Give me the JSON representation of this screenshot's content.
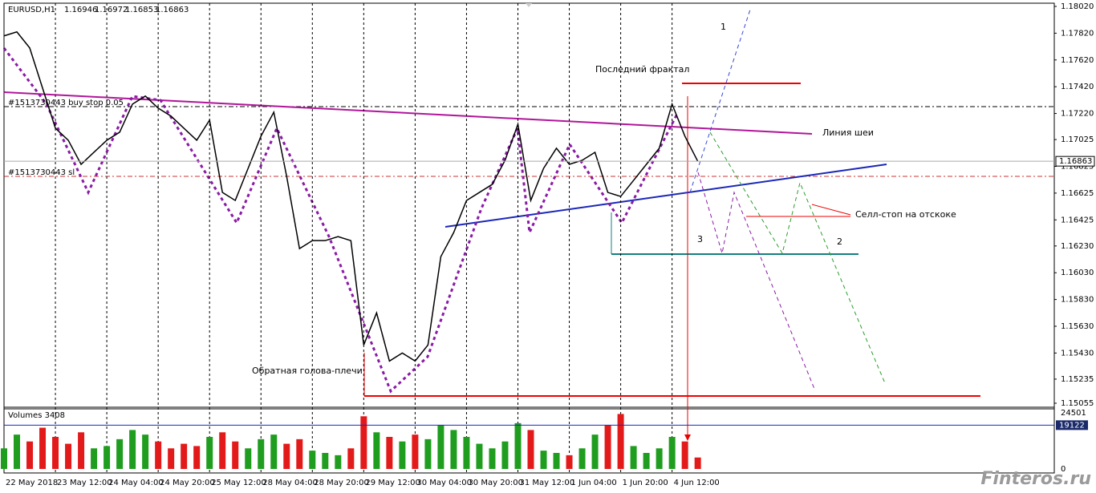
{
  "header": {
    "symbol": "EURUSD,H1",
    "ohlc": [
      1.16946,
      1.16972,
      1.16853,
      1.16863
    ]
  },
  "orders": [
    "#1513730443 buy stop 0.05",
    "#1513730443 sl"
  ],
  "annotations": [
    "Последний фрактал",
    "Линия шеи",
    "Селл-стоп на отскоке",
    "Обратная голова-плечи",
    "1",
    "2",
    "3"
  ],
  "watermark": "Finteros.ru",
  "chart_data": [
    {
      "type": "line",
      "name": "EURUSD close",
      "x": [
        0,
        1,
        2,
        3,
        4,
        5,
        6,
        7,
        8,
        9,
        10,
        11,
        12,
        13,
        14,
        15,
        16,
        17,
        18,
        19,
        20,
        21,
        22,
        23,
        24,
        25,
        26,
        27,
        28,
        29,
        30,
        31,
        32,
        33,
        34,
        35,
        36,
        37,
        38,
        39,
        40,
        41,
        42,
        43,
        44,
        45,
        46,
        47,
        48,
        49,
        50,
        51,
        52,
        53,
        54
      ],
      "values": [
        1.178,
        1.1783,
        1.1771,
        1.1741,
        1.1711,
        1.1702,
        1.1684,
        1.1693,
        1.1702,
        1.1708,
        1.1729,
        1.1735,
        1.1726,
        1.172,
        1.1711,
        1.1702,
        1.1717,
        1.1663,
        1.1657,
        1.1681,
        1.1705,
        1.1723,
        1.1675,
        1.1621,
        1.1627,
        1.1627,
        1.163,
        1.1627,
        1.1549,
        1.1573,
        1.1537,
        1.1543,
        1.1537,
        1.1549,
        1.1615,
        1.1633,
        1.1657,
        1.1663,
        1.1669,
        1.1687,
        1.1714,
        1.1657,
        1.1681,
        1.1696,
        1.1684,
        1.1687,
        1.1693,
        1.1663,
        1.166,
        1.1672,
        1.1684,
        1.1696,
        1.1729,
        1.1705,
        1.16863
      ],
      "color": "#000000",
      "current_price": 1.16863,
      "xlim": [
        0,
        81.75
      ],
      "xticks": [
        {
          "value": 0,
          "label": "22 May 2018"
        },
        {
          "value": 4,
          "label": "23 May 12:00"
        },
        {
          "value": 8,
          "label": "24 May 04:00"
        },
        {
          "value": 12,
          "label": "24 May 20:00"
        },
        {
          "value": 16,
          "label": "25 May 12:00"
        },
        {
          "value": 20,
          "label": "28 May 04:00"
        },
        {
          "value": 24,
          "label": "28 May 20:00"
        },
        {
          "value": 28,
          "label": "29 May 12:00"
        },
        {
          "value": 32,
          "label": "30 May 04:00"
        },
        {
          "value": 36,
          "label": "30 May 20:00"
        },
        {
          "value": 40,
          "label": "31 May 12:00"
        },
        {
          "value": 44,
          "label": "1 Jun 04:00"
        },
        {
          "value": 48,
          "label": "1 Jun 20:00"
        },
        {
          "value": 52,
          "label": "4 Jun 12:00"
        }
      ],
      "ylim": [
        1.15025,
        1.18044
      ],
      "yticks": [
        {
          "value": 1.1802,
          "label": "1.18020"
        },
        {
          "value": 1.1782,
          "label": "1.17820"
        },
        {
          "value": 1.1762,
          "label": "1.17620"
        },
        {
          "value": 1.1742,
          "label": "1.17420"
        },
        {
          "value": 1.1722,
          "label": "1.17220"
        },
        1.17025,
        1.16825,
        1.16625,
        1.16425,
        {
          "value": 1.1623,
          "label": "1.16230"
        },
        {
          "value": 1.1603,
          "label": "1.16030"
        },
        {
          "value": 1.1583,
          "label": "1.15830"
        },
        {
          "value": 1.1563,
          "label": "1.15630"
        },
        {
          "value": 1.1543,
          "label": "1.15430"
        },
        1.15235,
        1.15055
      ]
    },
    {
      "type": "bar",
      "title": "Volumes 3408",
      "values": [
        9000,
        15000,
        12000,
        18000,
        14000,
        11000,
        16000,
        9000,
        10000,
        13000,
        17000,
        15000,
        12000,
        9000,
        11000,
        10000,
        14000,
        16000,
        12000,
        9000,
        13000,
        15000,
        11000,
        13000,
        8000,
        7000,
        6000,
        9000,
        23000,
        16000,
        14000,
        12000,
        15000,
        13000,
        19000,
        17000,
        14000,
        11000,
        9000,
        12000,
        20000,
        17000,
        8000,
        7000,
        6000,
        9000,
        15000,
        19000,
        24000,
        10000,
        7000,
        9000,
        14000,
        12000,
        5000
      ],
      "current_value": 19122,
      "ylim": [
        0,
        24501
      ],
      "yticks": [
        0,
        24501
      ]
    }
  ]
}
